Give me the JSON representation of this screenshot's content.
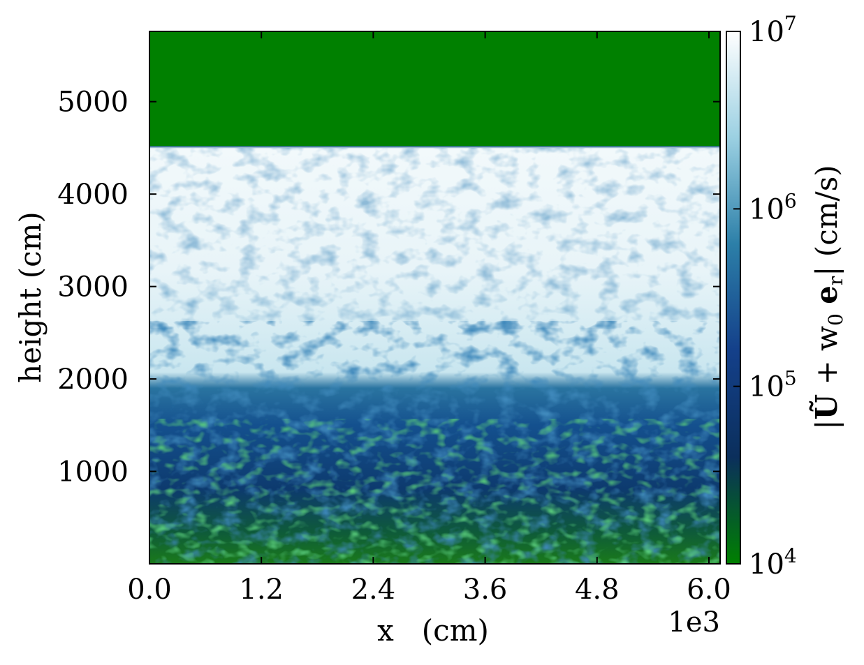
{
  "chart_data": {
    "type": "heatmap",
    "title": "",
    "xlabel": "x   (cm)",
    "ylabel": "height (cm)",
    "x_offset_label": "1e3",
    "xlim": [
      0,
      6.12
    ],
    "ylim": [
      0,
      5760
    ],
    "x_ticks": [
      0.0,
      1.2,
      2.4,
      3.6,
      4.8,
      6.0
    ],
    "x_tick_labels": [
      "0.0",
      "1.2",
      "2.4",
      "3.6",
      "4.8",
      "6.0"
    ],
    "y_ticks": [
      1000,
      2000,
      3000,
      4000,
      5000
    ],
    "y_tick_labels": [
      "1000",
      "2000",
      "3000",
      "4000",
      "5000"
    ],
    "colorbar": {
      "label_parts": [
        "|",
        "Ũ",
        " + w",
        "0",
        " ",
        "e",
        "r",
        "|",
        "(cm/s)"
      ],
      "scale": "log",
      "range": [
        10000,
        10000000
      ],
      "ticks": [
        10000,
        100000,
        1000000,
        10000000
      ],
      "tick_labels": [
        {
          "base": "10",
          "exp": "4"
        },
        {
          "base": "10",
          "exp": "5"
        },
        {
          "base": "10",
          "exp": "6"
        },
        {
          "base": "10",
          "exp": "7"
        }
      ],
      "colors": [
        "#008000",
        "#0b2f5c",
        "#14408a",
        "#2c7fa8",
        "#9bd0e2",
        "#ffffff"
      ]
    },
    "regions": [
      {
        "y_range": [
          4520,
          5760
        ],
        "level": 10000,
        "description": "uniform"
      },
      {
        "y_range": [
          2600,
          4520
        ],
        "level_range": [
          300000,
          10000000
        ]
      },
      {
        "y_range": [
          1000,
          2600
        ],
        "level_range": [
          50000,
          3000000
        ]
      },
      {
        "y_range": [
          0,
          1000
        ],
        "level_range": [
          10000,
          300000
        ]
      }
    ],
    "grid": false
  }
}
